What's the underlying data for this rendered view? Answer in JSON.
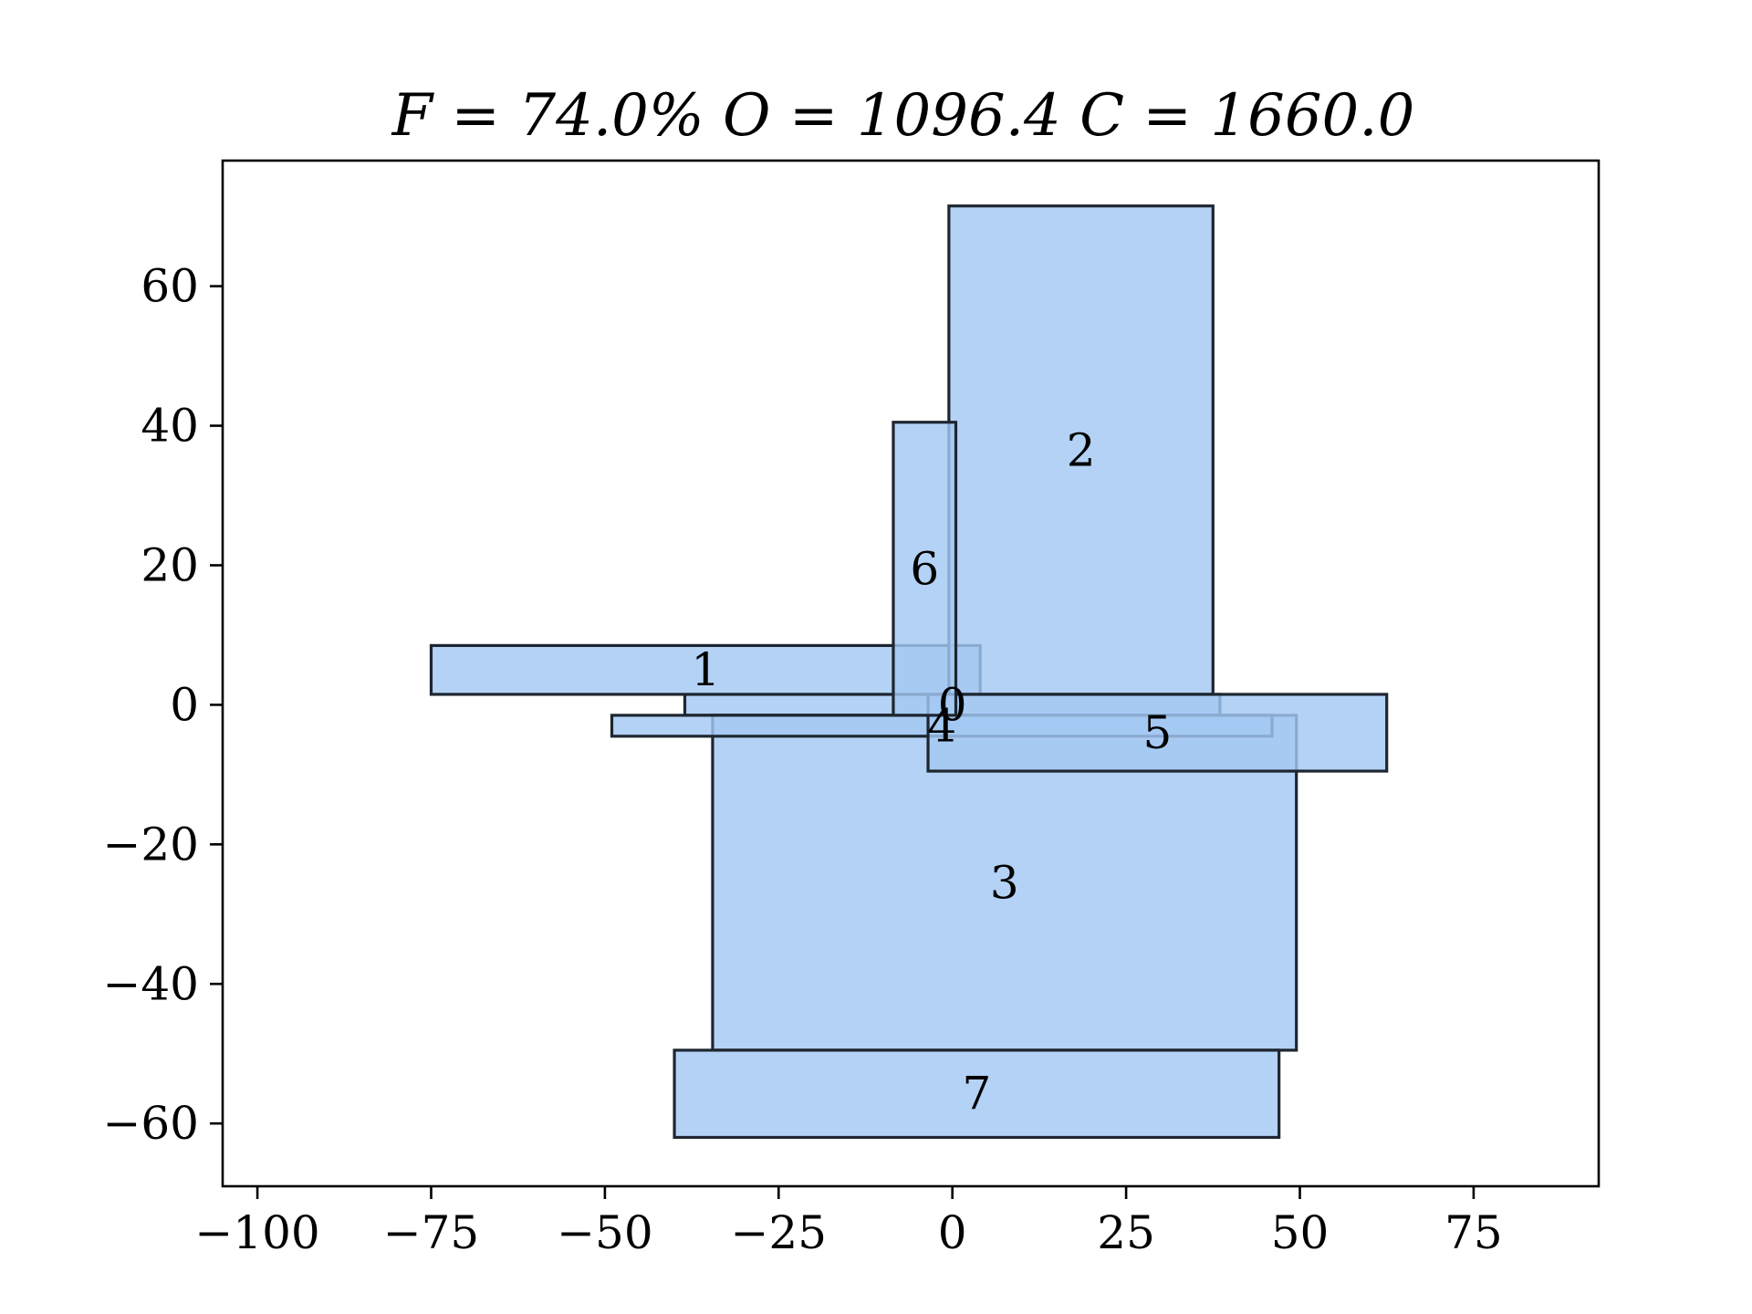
{
  "chart_data": {
    "type": "rectangles",
    "title": "F = 74.0%    O = 1096.4    C = 1660.0",
    "xlim": [
      -105,
      93
    ],
    "ylim": [
      -69,
      78
    ],
    "x_ticks": [
      -100,
      -75,
      -50,
      -25,
      0,
      25,
      50,
      75
    ],
    "x_tick_labels": [
      "−100",
      "−75",
      "−50",
      "−25",
      "0",
      "25",
      "50",
      "75"
    ],
    "y_ticks": [
      -60,
      -40,
      -20,
      0,
      20,
      40,
      60
    ],
    "y_tick_labels": [
      "−60",
      "−40",
      "−20",
      "0",
      "20",
      "40",
      "60"
    ],
    "grid": false,
    "colors": {
      "fill": "#a4c8f3",
      "edge": "#1e2630"
    },
    "rectangles": [
      {
        "label": "0",
        "x0": -38.5,
        "x1": 38.5,
        "y0": -1.5,
        "y1": 1.5
      },
      {
        "label": "1",
        "x0": -75,
        "x1": 4,
        "y0": 1.5,
        "y1": 8.5
      },
      {
        "label": "2",
        "x0": -0.5,
        "x1": 37.5,
        "y0": 1.5,
        "y1": 71.5
      },
      {
        "label": "3",
        "x0": -34.5,
        "x1": 49.5,
        "y0": -49.5,
        "y1": -1.5
      },
      {
        "label": "4",
        "x0": -49,
        "x1": 46,
        "y0": -4.5,
        "y1": -1.5
      },
      {
        "label": "5",
        "x0": -3.5,
        "x1": 62.5,
        "y0": -9.5,
        "y1": 1.5
      },
      {
        "label": "6",
        "x0": -8.5,
        "x1": 0.5,
        "y0": -1.5,
        "y1": 40.5
      },
      {
        "label": "7",
        "x0": -40,
        "x1": 47,
        "y0": -62,
        "y1": -49.5
      }
    ]
  }
}
